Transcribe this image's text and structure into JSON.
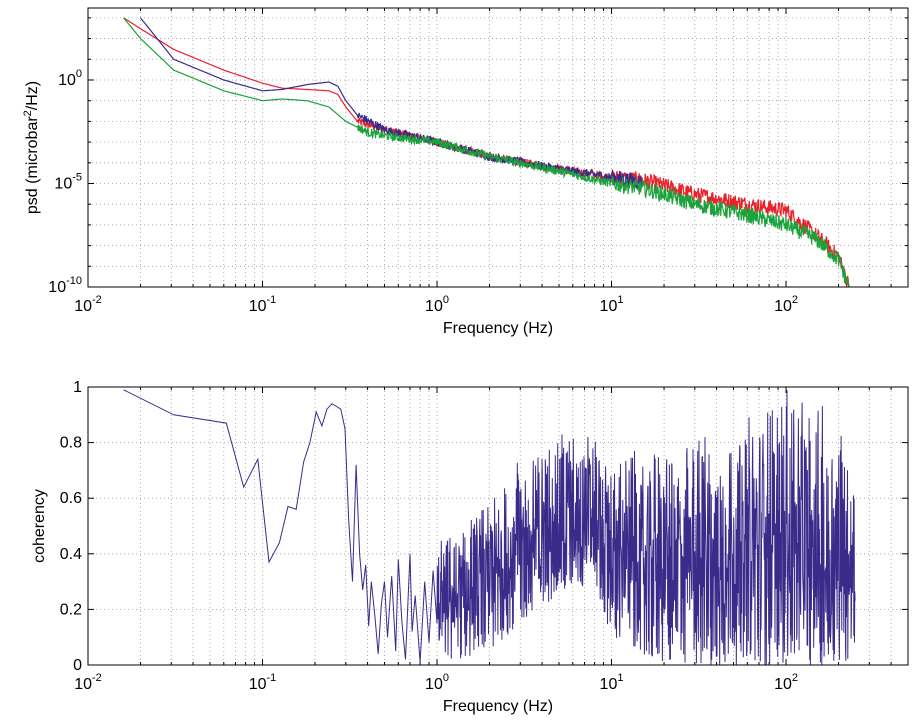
{
  "chart_data": [
    {
      "type": "line",
      "xscale": "log",
      "yscale": "log",
      "xlim": [
        0.01,
        500
      ],
      "ylim": [
        1e-10,
        3000
      ],
      "xlabel": "Frequency (Hz)",
      "ylabel_parts": {
        "pre": "psd (microbar",
        "sup": "2",
        "post": "/Hz)"
      },
      "xticks": [
        {
          "value": 0.01,
          "base": "10",
          "exp": "-2"
        },
        {
          "value": 0.1,
          "base": "10",
          "exp": "-1"
        },
        {
          "value": 1,
          "base": "10",
          "exp": "0"
        },
        {
          "value": 10,
          "base": "10",
          "exp": "1"
        },
        {
          "value": 100,
          "base": "10",
          "exp": "2"
        }
      ],
      "yticks": [
        {
          "value": 1,
          "base": "10",
          "exp": "0"
        },
        {
          "value": 1e-05,
          "base": "10",
          "exp": "-5"
        },
        {
          "value": 1e-10,
          "base": "10",
          "exp": "-10"
        }
      ],
      "grid": true,
      "series": [
        {
          "color": "#e8212b",
          "noise": 0.35,
          "x": [
            0.016,
            0.02,
            0.031,
            0.06,
            0.1,
            0.13,
            0.18,
            0.24,
            0.27,
            0.3,
            0.35,
            0.5,
            1,
            2,
            5,
            10,
            15,
            20,
            30,
            60,
            100,
            150,
            200,
            230
          ],
          "y": [
            1000,
            300,
            30,
            3,
            0.7,
            0.4,
            0.35,
            0.3,
            0.2,
            0.05,
            0.01,
            0.004,
            0.001,
            0.0002,
            5e-05,
            2e-05,
            1.5e-05,
            8e-06,
            3e-06,
            1e-06,
            5e-07,
            3e-08,
            3e-09,
            1e-10
          ]
        },
        {
          "color": "#3a2a8a",
          "noise": 0.35,
          "x": [
            0.02,
            0.031,
            0.06,
            0.1,
            0.13,
            0.18,
            0.24,
            0.27,
            0.3,
            0.35,
            0.5,
            1,
            2,
            5,
            10,
            15
          ],
          "y": [
            1000,
            10,
            1,
            0.3,
            0.35,
            0.6,
            0.8,
            0.5,
            0.1,
            0.02,
            0.004,
            0.001,
            0.0002,
            5e-05,
            2e-05,
            1.2e-05
          ]
        },
        {
          "color": "#1aa33a",
          "noise": 0.35,
          "x": [
            0.016,
            0.02,
            0.031,
            0.06,
            0.1,
            0.13,
            0.18,
            0.24,
            0.3,
            0.4,
            0.5,
            1,
            2,
            5,
            10,
            15,
            20,
            30,
            60,
            100,
            150,
            200,
            230
          ],
          "y": [
            1000,
            100,
            3,
            0.3,
            0.1,
            0.12,
            0.1,
            0.05,
            0.01,
            0.003,
            0.002,
            0.001,
            0.0002,
            4e-05,
            1e-05,
            6e-06,
            3e-06,
            1e-06,
            3e-07,
            1e-07,
            2e-08,
            2e-09,
            1e-10
          ]
        }
      ]
    },
    {
      "type": "line",
      "xscale": "log",
      "xlim": [
        0.01,
        500
      ],
      "ylim": [
        0,
        1
      ],
      "xlabel": "Frequency (Hz)",
      "ylabel": "coherency",
      "xticks": [
        {
          "value": 0.01,
          "base": "10",
          "exp": "-2"
        },
        {
          "value": 0.1,
          "base": "10",
          "exp": "-1"
        },
        {
          "value": 1,
          "base": "10",
          "exp": "0"
        },
        {
          "value": 10,
          "base": "10",
          "exp": "1"
        },
        {
          "value": 100,
          "base": "10",
          "exp": "2"
        }
      ],
      "yticks": [
        {
          "value": 0,
          "label": "0"
        },
        {
          "value": 0.2,
          "label": "0.2"
        },
        {
          "value": 0.4,
          "label": "0.4"
        },
        {
          "value": 0.6,
          "label": "0.6"
        },
        {
          "value": 0.8,
          "label": "0.8"
        },
        {
          "value": 1,
          "label": "1"
        }
      ],
      "grid": true,
      "series": [
        {
          "color": "#3a2a8a",
          "x": [
            0.016,
            0.031,
            0.062,
            0.078,
            0.094,
            0.109,
            0.125,
            0.14,
            0.156,
            0.172,
            0.187,
            0.203,
            0.219,
            0.234,
            0.25,
            0.266,
            0.281,
            0.297,
            0.312,
            0.328,
            0.344,
            0.36,
            0.375,
            0.39,
            0.406,
            0.42,
            0.44,
            0.46,
            0.48,
            0.5,
            0.52,
            0.55,
            0.58,
            0.6,
            0.63,
            0.66,
            0.7,
            0.72,
            0.75,
            0.8,
            0.85,
            0.9,
            0.95,
            1.0
          ],
          "y": [
            0.99,
            0.9,
            0.87,
            0.64,
            0.74,
            0.37,
            0.44,
            0.57,
            0.56,
            0.73,
            0.8,
            0.91,
            0.86,
            0.92,
            0.94,
            0.93,
            0.92,
            0.85,
            0.52,
            0.3,
            0.72,
            0.4,
            0.27,
            0.36,
            0.14,
            0.3,
            0.18,
            0.04,
            0.22,
            0.3,
            0.1,
            0.32,
            0.05,
            0.38,
            0.15,
            0.02,
            0.4,
            0.12,
            0.25,
            0.01,
            0.3,
            0.08,
            0.34,
            0.15
          ],
          "noisy_band": [
            {
              "x": 1,
              "lo": 0.0,
              "hi": 0.45
            },
            {
              "x": 2,
              "lo": 0.05,
              "hi": 0.6
            },
            {
              "x": 3,
              "lo": 0.15,
              "hi": 0.75
            },
            {
              "x": 5,
              "lo": 0.25,
              "hi": 0.85
            },
            {
              "x": 8,
              "lo": 0.3,
              "hi": 0.85
            },
            {
              "x": 10,
              "lo": 0.1,
              "hi": 0.75
            },
            {
              "x": 20,
              "lo": 0.0,
              "hi": 0.8
            },
            {
              "x": 60,
              "lo": 0.0,
              "hi": 0.9
            },
            {
              "x": 100,
              "lo": 0.0,
              "hi": 0.99
            },
            {
              "x": 150,
              "lo": 0.0,
              "hi": 0.95
            },
            {
              "x": 250,
              "lo": 0.0,
              "hi": 0.85
            }
          ]
        }
      ]
    }
  ]
}
